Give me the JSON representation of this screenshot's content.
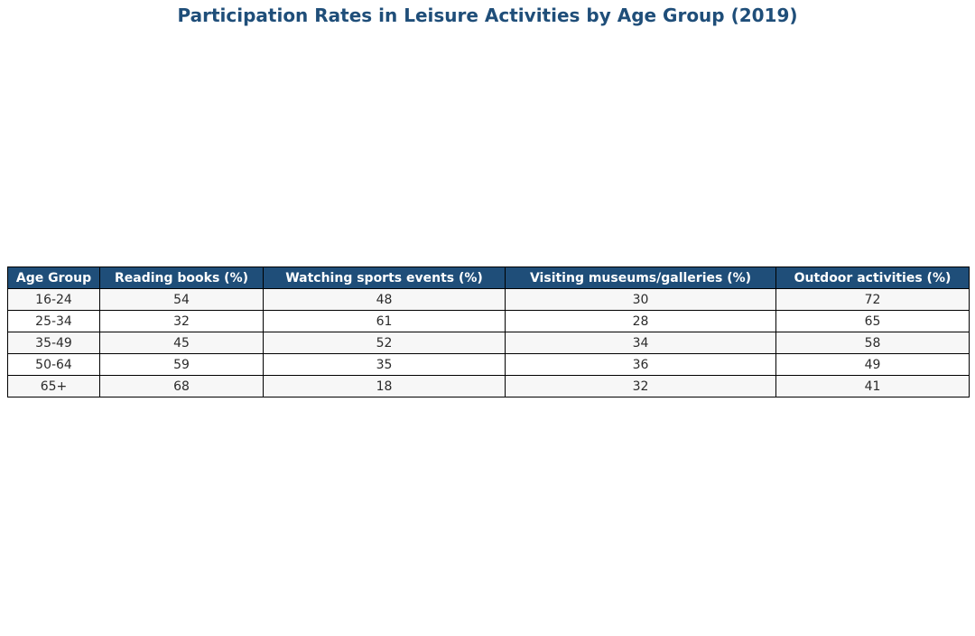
{
  "chart_data": {
    "type": "table",
    "title": "Participation Rates in Leisure Activities by Age Group (2019)",
    "columns": [
      "Age Group",
      "Reading books (%)",
      "Watching sports events (%)",
      "Visiting museums/galleries (%)",
      "Outdoor activities (%)"
    ],
    "rows": [
      [
        "16-24",
        "54",
        "48",
        "30",
        "72"
      ],
      [
        "25-34",
        "32",
        "61",
        "28",
        "65"
      ],
      [
        "35-49",
        "45",
        "52",
        "34",
        "58"
      ],
      [
        "50-64",
        "59",
        "35",
        "36",
        "49"
      ],
      [
        "65+",
        "68",
        "18",
        "32",
        "41"
      ]
    ],
    "colors": {
      "header_bg": "#1f4e79",
      "header_text": "#ffffff",
      "title": "#1f4e79",
      "row_alt_bg": "#f7f7f7"
    }
  }
}
